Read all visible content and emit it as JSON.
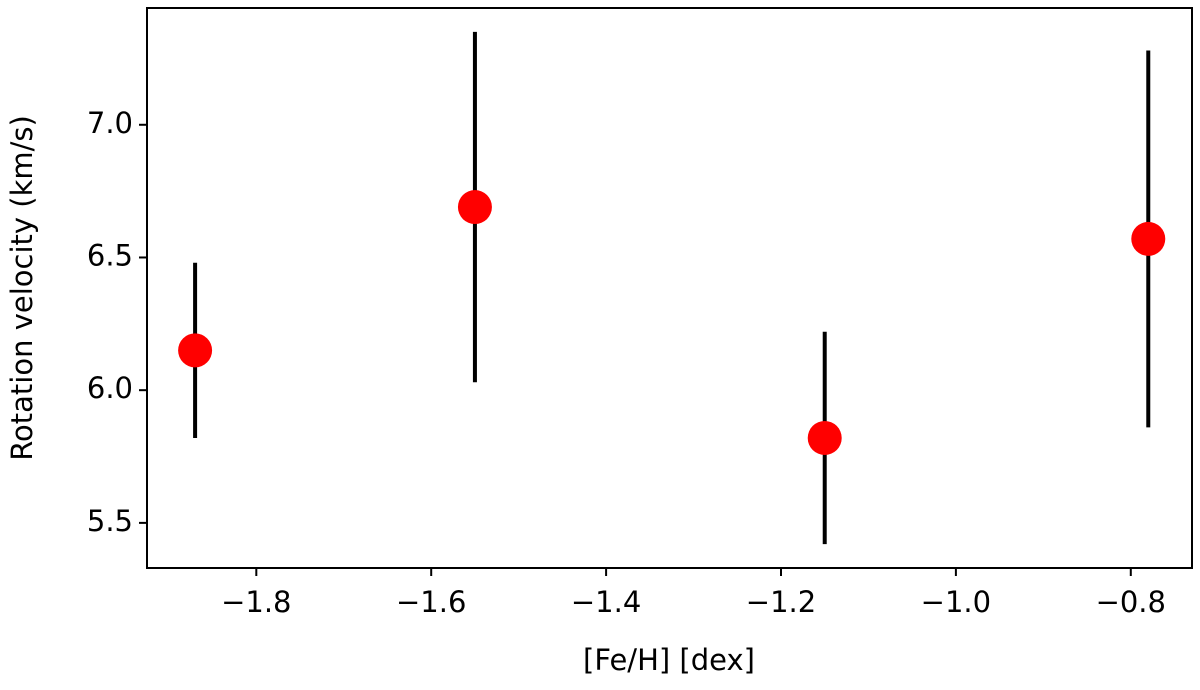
{
  "chart_data": {
    "type": "scatter",
    "xlabel": "[Fe/H] [dex]",
    "ylabel": "Rotation velocity (km/s)",
    "x": [
      -1.87,
      -1.55,
      -1.15,
      -0.78
    ],
    "values": [
      6.15,
      6.69,
      5.82,
      6.57
    ],
    "errors": [
      0.33,
      0.66,
      0.4,
      0.71
    ],
    "color": "#ff0000",
    "error_color": "#000000",
    "xlim": [
      -1.925,
      -0.73
    ],
    "ylim": [
      5.33,
      7.44
    ],
    "xticks": [
      {
        "value": -1.8,
        "label": "−1.8"
      },
      {
        "value": -1.6,
        "label": "−1.6"
      },
      {
        "value": -1.4,
        "label": "−1.4"
      },
      {
        "value": -1.2,
        "label": "−1.2"
      },
      {
        "value": -1.0,
        "label": "−1.0"
      },
      {
        "value": -0.8,
        "label": "−0.8"
      }
    ],
    "yticks": [
      {
        "value": 5.5,
        "label": "5.5"
      },
      {
        "value": 6.0,
        "label": "6.0"
      },
      {
        "value": 6.5,
        "label": "6.5"
      },
      {
        "value": 7.0,
        "label": "7.0"
      }
    ]
  }
}
